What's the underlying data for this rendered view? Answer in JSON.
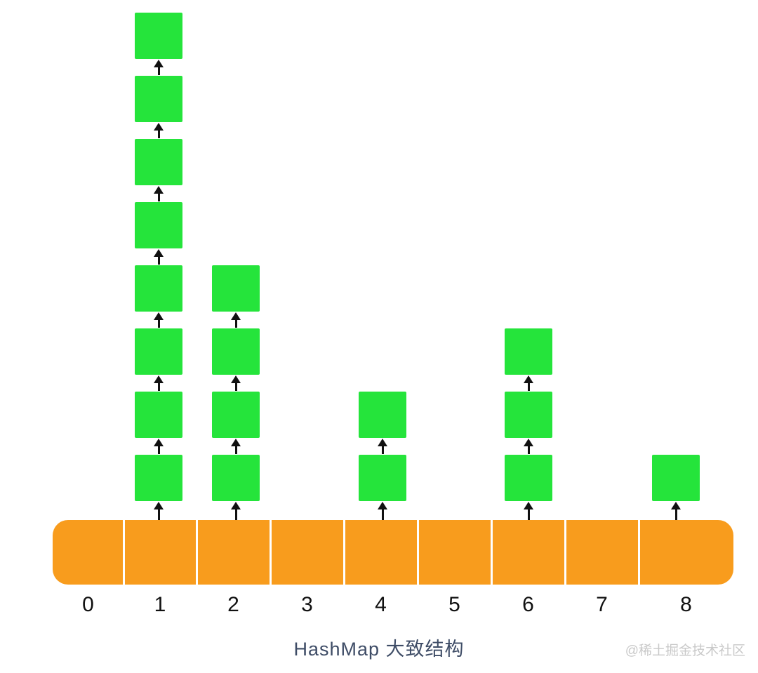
{
  "diagram": {
    "caption": "HashMap 大致结构",
    "watermark": "@稀土掘金技术社区",
    "colors": {
      "node": "#25e43b",
      "bucket": "#f89c1d",
      "divider": "#ffffff",
      "arrow": "#111111",
      "index_label": "#111111",
      "caption": "#3e4c66",
      "watermark": "#c9c9c9"
    },
    "buckets": [
      {
        "index": "0",
        "chain_length": 0
      },
      {
        "index": "1",
        "chain_length": 8
      },
      {
        "index": "2",
        "chain_length": 4
      },
      {
        "index": "3",
        "chain_length": 0
      },
      {
        "index": "4",
        "chain_length": 2
      },
      {
        "index": "5",
        "chain_length": 0
      },
      {
        "index": "6",
        "chain_length": 3
      },
      {
        "index": "7",
        "chain_length": 0
      },
      {
        "index": "8",
        "chain_length": 1
      }
    ]
  }
}
